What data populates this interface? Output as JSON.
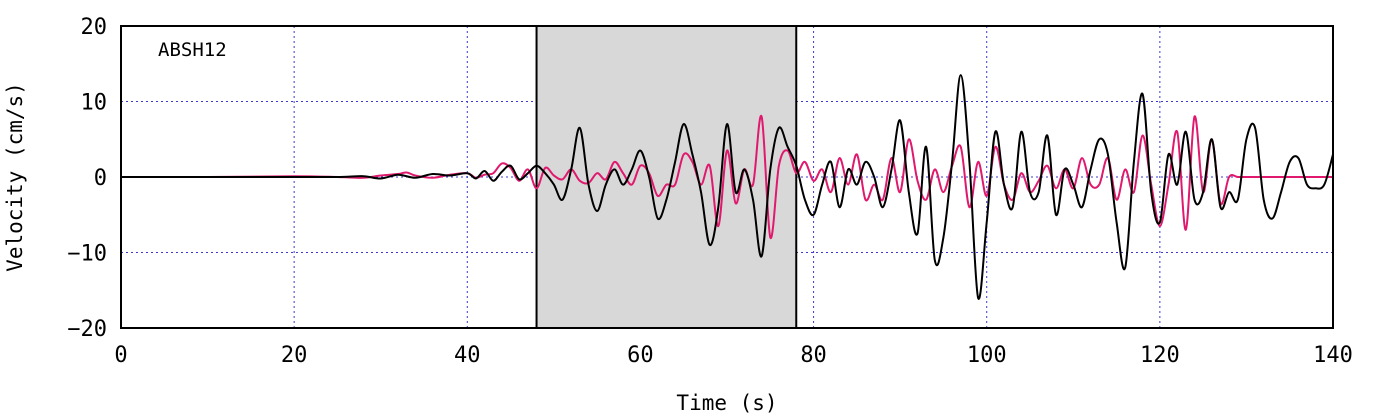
{
  "chart_data": {
    "type": "line",
    "annotation": "ABSH12",
    "xlabel": "Time (s)",
    "ylabel": "Velocity (cm/s)",
    "xlim": [
      0,
      140
    ],
    "ylim": [
      -20,
      20
    ],
    "xticks": [
      0,
      20,
      40,
      60,
      80,
      100,
      120,
      140
    ],
    "yticks": [
      -20,
      -10,
      0,
      10,
      20
    ],
    "xtick_labels": [
      "0",
      "20",
      "40",
      "60",
      "80",
      "100",
      "120",
      "140"
    ],
    "ytick_labels": [
      "−20",
      "−10",
      "0",
      "10",
      "20"
    ],
    "grid": true,
    "highlight_window": [
      48,
      78
    ],
    "series": [
      {
        "color": "#000000",
        "x": [
          0,
          10,
          20,
          25,
          28,
          30,
          32,
          34,
          36,
          38,
          40,
          41,
          42,
          43,
          44,
          45,
          46,
          47,
          48,
          49,
          50,
          51,
          52,
          53,
          54,
          55,
          56,
          57,
          58,
          59,
          60,
          61,
          62,
          63,
          64,
          65,
          66,
          67,
          68,
          69,
          70,
          71,
          72,
          73,
          74,
          75,
          76,
          77,
          78,
          79,
          80,
          81,
          82,
          83,
          84,
          85,
          86,
          87,
          88,
          89,
          90,
          91,
          92,
          93,
          94,
          95,
          96,
          97,
          98,
          99,
          100,
          101,
          102,
          103,
          104,
          105,
          106,
          107,
          108,
          109,
          110,
          111,
          112,
          113,
          114,
          115,
          116,
          117,
          118,
          119,
          120,
          121,
          122,
          123,
          124,
          125,
          126,
          127,
          128,
          129,
          130,
          131,
          132,
          133,
          134,
          135,
          136,
          137,
          138,
          139,
          140
        ],
        "y": [
          0,
          0,
          0,
          0,
          0.1,
          -0.2,
          0.3,
          -0.1,
          0.4,
          0.2,
          0.5,
          -0.2,
          0.8,
          -0.5,
          0.7,
          1.5,
          -0.3,
          0.5,
          1.5,
          0.5,
          -1,
          -3,
          1,
          6.5,
          -1,
          -4.5,
          -1,
          1,
          -1,
          1,
          3.5,
          0,
          -5.5,
          -3,
          2,
          7,
          3,
          -2,
          -9,
          -4,
          7,
          -2,
          1,
          -3,
          -10.5,
          1,
          6.5,
          4,
          1.5,
          -3,
          -5,
          -1,
          2,
          -4,
          1,
          -1,
          2,
          0,
          -4,
          1,
          7.5,
          -2,
          -7.5,
          4,
          -11,
          -8,
          2,
          13.5,
          2,
          -16,
          -6,
          6,
          -1,
          -4,
          6,
          -2,
          -2,
          5.5,
          -5,
          1,
          -1,
          -4,
          1,
          5,
          3,
          -6,
          -12,
          2,
          11,
          -2,
          -6,
          3,
          -1,
          6,
          -3,
          -2,
          5,
          -4,
          -2,
          -3,
          5,
          6.5,
          -3,
          -5.5,
          -2,
          2,
          2.5,
          -1,
          -1.5,
          -1,
          3
        ]
      },
      {
        "color": "#e0196e",
        "x": [
          0,
          10,
          20,
          25,
          28,
          30,
          32,
          33,
          34,
          36,
          38,
          40,
          41,
          42,
          43,
          44,
          45,
          46,
          47,
          48,
          49,
          50,
          51,
          52,
          53,
          54,
          55,
          56,
          57,
          58,
          59,
          60,
          61,
          62,
          63,
          64,
          65,
          66,
          67,
          68,
          69,
          70,
          71,
          72,
          73,
          74,
          75,
          76,
          77,
          78,
          79,
          80,
          81,
          82,
          83,
          84,
          85,
          86,
          87,
          88,
          89,
          90,
          91,
          92,
          93,
          94,
          95,
          96,
          97,
          98,
          99,
          100,
          101,
          102,
          103,
          104,
          105,
          106,
          107,
          108,
          109,
          110,
          111,
          112,
          113,
          114,
          115,
          116,
          117,
          118,
          119,
          120,
          121,
          122,
          123,
          124,
          125,
          126,
          127,
          128,
          129,
          130,
          131,
          132,
          133,
          134,
          135,
          136,
          137,
          138,
          139,
          140
        ],
        "y": [
          0,
          0,
          0.1,
          0,
          -0.1,
          0.2,
          0.4,
          0.6,
          0.2,
          -0.1,
          0.3,
          0.5,
          -0.1,
          0.3,
          0.5,
          1.8,
          1.2,
          -0.5,
          1,
          -1.5,
          1.2,
          0.2,
          -0.3,
          1,
          -0.5,
          -0.8,
          0.5,
          -0.3,
          2,
          0.5,
          -1,
          1.5,
          0.5,
          -2.5,
          -1,
          -1,
          3,
          2,
          -1,
          1.5,
          -6.5,
          3.5,
          -3.5,
          1,
          -1,
          8,
          -8,
          1.5,
          3.5,
          0.5,
          2,
          -0.5,
          1,
          -2,
          2.5,
          -1,
          3,
          -3,
          -1,
          -3,
          2.5,
          -2,
          5,
          -0.5,
          -3,
          1,
          -2,
          1.5,
          4,
          -4,
          2,
          -2.5,
          4,
          -1,
          -3,
          0.5,
          -2,
          -0.5,
          1.5,
          -1.5,
          1,
          -1.5,
          2.5,
          -1,
          -1,
          2.5,
          -3,
          1,
          -2,
          5.5,
          -1,
          -6.5,
          -1,
          6,
          -7,
          8,
          -2,
          5,
          -3.5,
          0,
          0,
          0,
          0,
          0,
          0,
          0,
          0,
          0,
          0,
          0,
          0,
          0
        ]
      }
    ]
  }
}
